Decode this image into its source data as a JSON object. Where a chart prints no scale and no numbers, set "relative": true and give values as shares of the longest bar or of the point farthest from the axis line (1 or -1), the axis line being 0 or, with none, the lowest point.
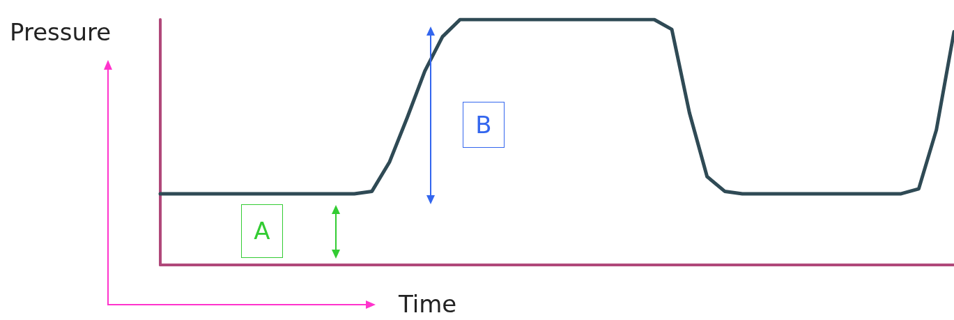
{
  "chart_data": {
    "type": "line",
    "relative": true,
    "xlabel": "Time",
    "ylabel": "Pressure",
    "annotations": [
      "A",
      "B"
    ],
    "color": "#2f4a55",
    "marker": "none",
    "line_style": "solid",
    "grid": false,
    "tick_labels": false,
    "categories": [
      null,
      null,
      null,
      null,
      null,
      null,
      null,
      null,
      null,
      null,
      null,
      null,
      null,
      null,
      null,
      null,
      null,
      null,
      null,
      null,
      null,
      null,
      null,
      null,
      null,
      null,
      null,
      null,
      null,
      null,
      null,
      null,
      null,
      null,
      null,
      null,
      null,
      null,
      null,
      null,
      null,
      null,
      null,
      null,
      null,
      null
    ],
    "values": [
      0.29,
      0.29,
      0.29,
      0.29,
      0.29,
      0.29,
      0.29,
      0.29,
      0.29,
      0.29,
      0.29,
      0.29,
      0.3,
      0.42,
      0.6,
      0.79,
      0.93,
      1.0,
      1.0,
      1.0,
      1.0,
      1.0,
      1.0,
      1.0,
      1.0,
      1.0,
      1.0,
      1.0,
      1.0,
      0.96,
      0.62,
      0.36,
      0.3,
      0.29,
      0.29,
      0.29,
      0.29,
      0.29,
      0.29,
      0.29,
      0.29,
      0.29,
      0.29,
      0.31,
      0.55,
      0.95
    ]
  }
}
